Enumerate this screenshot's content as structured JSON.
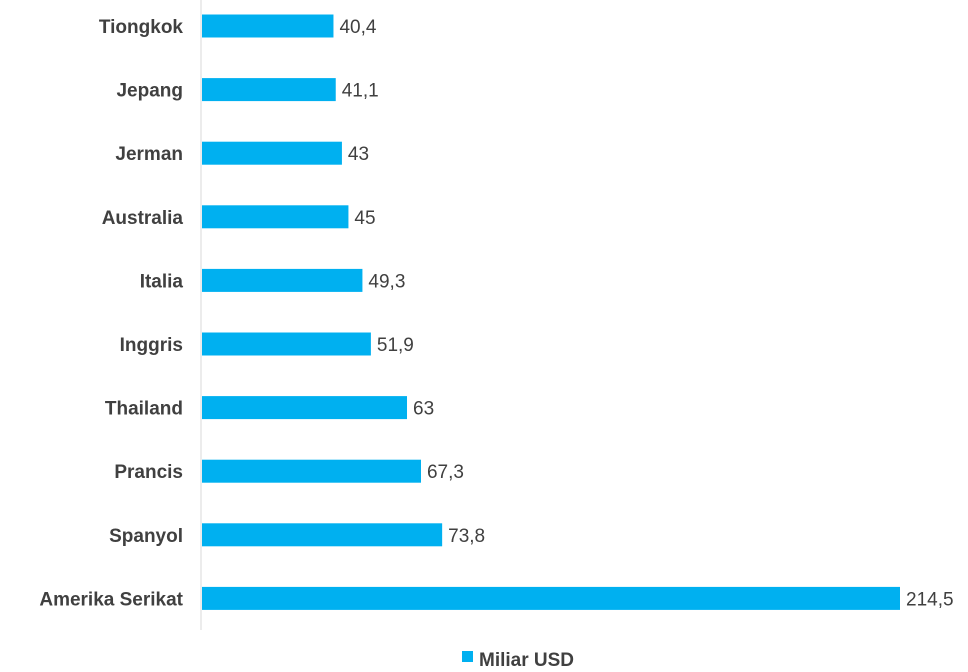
{
  "chart_data": {
    "type": "bar",
    "orientation": "horizontal",
    "categories": [
      "Tiongkok",
      "Jepang",
      "Jerman",
      "Australia",
      "Italia",
      "Inggris",
      "Thailand",
      "Prancis",
      "Spanyol",
      "Amerika Serikat"
    ],
    "series": [
      {
        "name": "Miliar USD",
        "values": [
          40.4,
          41.1,
          43,
          45,
          49.3,
          51.9,
          63,
          67.3,
          73.8,
          214.5
        ],
        "labels": [
          "40,4",
          "41,1",
          "43",
          "45",
          "49,3",
          "51,9",
          "63",
          "67,3",
          "73,8",
          "214,5"
        ],
        "color": "#00b0f0"
      }
    ],
    "xlim": [
      0,
      214.5
    ],
    "grid": false,
    "legend": "bottom"
  }
}
